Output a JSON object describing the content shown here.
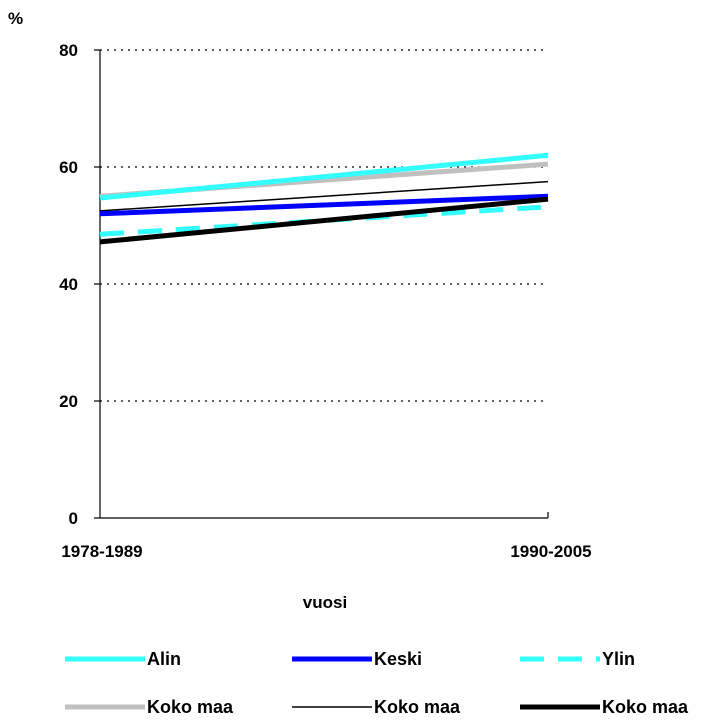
{
  "chart_data": {
    "type": "line",
    "ylabel": "%",
    "xlabel": "vuosi",
    "categories": [
      "1978-1989",
      "1990-2005"
    ],
    "ylim": [
      0,
      80
    ],
    "yticks": [
      "0",
      "20",
      "40",
      "60",
      "80"
    ],
    "grid": "horizontal dotted",
    "legend_position": "bottom",
    "series": [
      {
        "name": "Koko maa",
        "values": [
          55.0,
          60.5
        ],
        "color": "#c0c0c0",
        "style": "thick"
      },
      {
        "name": "Alin",
        "values": [
          54.7,
          62.0
        ],
        "color": "#33ffff",
        "style": "thick"
      },
      {
        "name": "Koko maa",
        "values": [
          52.5,
          57.5
        ],
        "color": "#000000",
        "style": "thin"
      },
      {
        "name": "Keski",
        "values": [
          52.0,
          55.0
        ],
        "color": "#0000ff",
        "style": "thick"
      },
      {
        "name": "Ylin",
        "values": [
          48.5,
          53.2
        ],
        "color": "#33ffff",
        "style": "dashed"
      },
      {
        "name": "Koko maa",
        "values": [
          47.2,
          54.5
        ],
        "color": "#000000",
        "style": "thick"
      }
    ],
    "legend": [
      {
        "label": "Alin",
        "color": "#33ffff",
        "style": "thick"
      },
      {
        "label": "Keski",
        "color": "#0000ff",
        "style": "thick"
      },
      {
        "label": "Ylin",
        "color": "#33ffff",
        "style": "dashed"
      },
      {
        "label": "Koko maa",
        "color": "#c0c0c0",
        "style": "thick"
      },
      {
        "label": "Koko maa",
        "color": "#000000",
        "style": "thin"
      },
      {
        "label": "Koko maa",
        "color": "#000000",
        "style": "thick"
      }
    ]
  }
}
